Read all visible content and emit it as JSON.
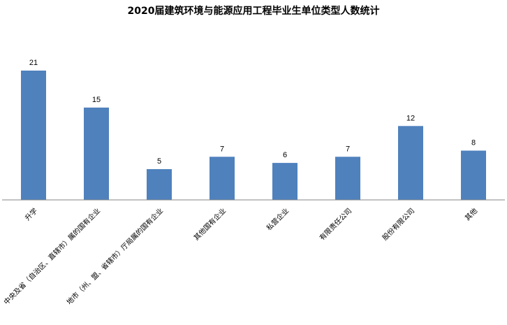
{
  "chart_data": {
    "type": "bar",
    "title": "2020届建筑环境与能源应用工程毕业生单位类型人数统计",
    "categories": [
      "升学",
      "中央及省（自治区、直辖市）属的国有企业",
      "地市（州、盟、省辖市）厅局属的国有企业",
      "其他国有企业",
      "私营企业",
      "有限责任公司",
      "股份有限公司",
      "其他"
    ],
    "values": [
      21,
      15,
      5,
      7,
      6,
      7,
      12,
      8
    ],
    "data_labels": [
      "21",
      "15",
      "5",
      "7",
      "6",
      "7",
      "12",
      "8"
    ],
    "xlabel": "",
    "ylabel": "",
    "ylim": [
      0,
      21
    ],
    "grid": false,
    "legend": "none",
    "bar_color": "#4F81BD"
  }
}
